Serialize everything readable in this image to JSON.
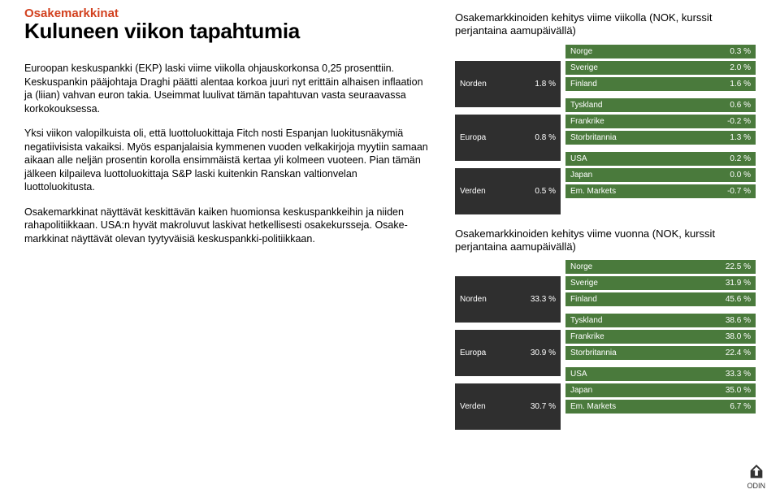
{
  "kicker": "Osakemarkkinat",
  "title": "Kuluneen viikon tapahtumia",
  "paragraphs": [
    "Euroopan keskuspankki (EKP) laski viime viikolla ohjauskorkonsa 0,25 prosenttiin. Keskuspankin pääjohtaja Draghi päätti alentaa korkoa juuri nyt erittäin alhaisen inflaation ja (liian) vahvan euron takia. Useimmat luulivat tämän tapahtuvan vasta seuraavassa korkokouksessa.",
    "Yksi viikon valopilkuista oli, että luottoluokittaja Fitch nosti Espanjan luokitusnäkymiä negatiivisista vakaiksi. Myös espanjalaisia kymmenen vuoden velkakirjoja myytiin samaan aikaan alle neljän prosentin korolla ensimmäistä kertaa yli kolmeen vuoteen. Pian tämän jälkeen kilpaileva luottoluokittaja S&P laski kuitenkin Ranskan valtionvelan luottoluokitusta.",
    "Osakemarkkinat näyttävät keskittävän kaiken huomionsa keskuspankkeihin ja niiden rahapolitiikkaan. USA:n hyvät makroluvut laskivat hetkellisesti osakekursseja. Osake-markkinat näyttävät olevan tyytyväisiä keskuspankki-politiikkaan."
  ],
  "table1": {
    "title": "Osakemarkkinoiden kehitys viime viikolla (NOK, kurssit perjantaina aamupäivällä)",
    "leftRows": [
      {
        "label": "Norden",
        "value": "1.8 %"
      },
      {
        "label": "Europa",
        "value": "0.8 %"
      },
      {
        "label": "Verden",
        "value": "0.5 %"
      }
    ],
    "rightRows": [
      {
        "label": "Norge",
        "value": "0.3 %"
      },
      {
        "label": "Sverige",
        "value": "2.0 %"
      },
      {
        "label": "Finland",
        "value": "1.6 %"
      },
      {
        "label": "Tyskland",
        "value": "0.6 %"
      },
      {
        "label": "Frankrike",
        "value": "-0.2 %"
      },
      {
        "label": "Storbritannia",
        "value": "1.3 %"
      },
      {
        "label": "USA",
        "value": "0.2 %"
      },
      {
        "label": "Japan",
        "value": "0.0 %"
      },
      {
        "label": "Em. Markets",
        "value": "-0.7 %"
      }
    ]
  },
  "table2": {
    "title": "Osakemarkkinoiden kehitys viime vuonna (NOK, kurssit perjantaina aamupäivällä)",
    "leftRows": [
      {
        "label": "Norden",
        "value": "33.3 %"
      },
      {
        "label": "Europa",
        "value": "30.9 %"
      },
      {
        "label": "Verden",
        "value": "30.7 %"
      }
    ],
    "rightRows": [
      {
        "label": "Norge",
        "value": "22.5 %"
      },
      {
        "label": "Sverige",
        "value": "31.9 %"
      },
      {
        "label": "Finland",
        "value": "45.6 %"
      },
      {
        "label": "Tyskland",
        "value": "38.6 %"
      },
      {
        "label": "Frankrike",
        "value": "38.0 %"
      },
      {
        "label": "Storbritannia",
        "value": "22.4 %"
      },
      {
        "label": "USA",
        "value": "33.3 %"
      },
      {
        "label": "Japan",
        "value": "35.0 %"
      },
      {
        "label": "Em. Markets",
        "value": "6.7 %"
      }
    ]
  },
  "colors": {
    "leftCellBg": "#2f2f2f",
    "rightCellBg": "#4a7a3c",
    "text": "#ffffff"
  },
  "logoText": "ODIN"
}
